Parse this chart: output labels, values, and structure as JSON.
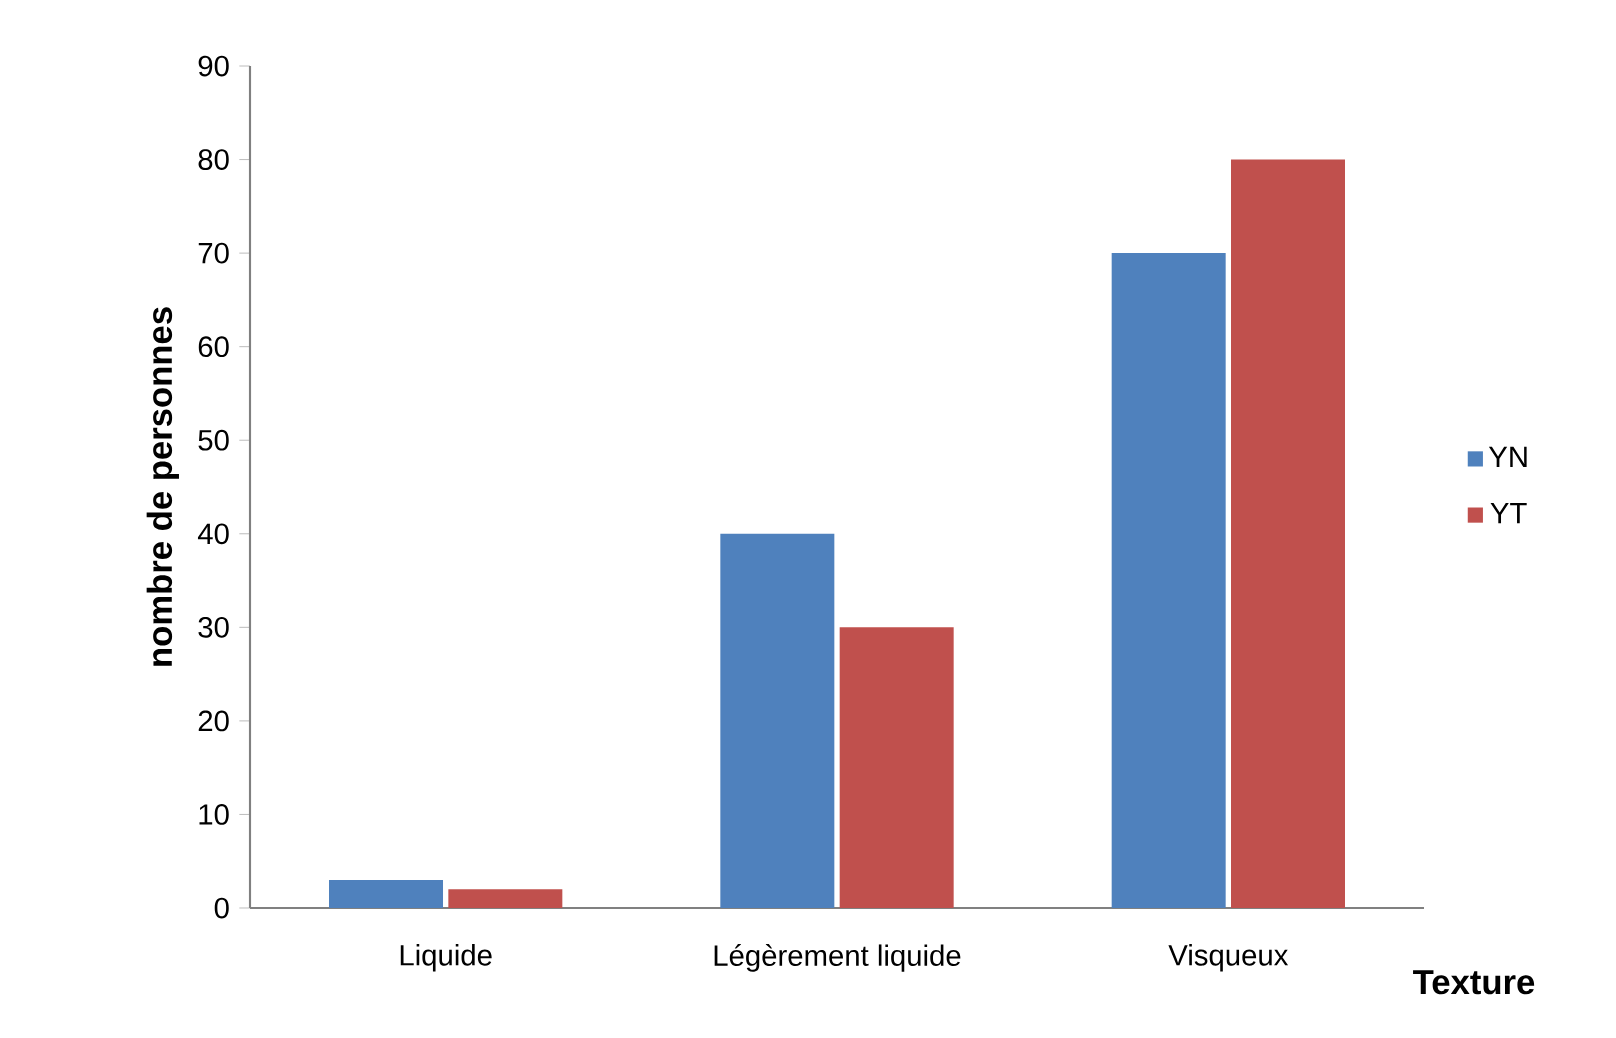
{
  "chart_data": {
    "type": "bar",
    "xlabel": "Texture",
    "ylabel": "nombre de personnes",
    "categories": [
      "Liquide",
      "Légèrement liquide",
      "Visqueux"
    ],
    "series": [
      {
        "name": "YN",
        "color": "#4f81bd",
        "values": [
          3,
          40,
          70
        ]
      },
      {
        "name": "YT",
        "color": "#c0504d",
        "values": [
          2,
          30,
          80
        ]
      }
    ],
    "ylim": [
      0,
      90
    ],
    "yticks": [
      0,
      10,
      20,
      30,
      40,
      50,
      60,
      70,
      80,
      90
    ],
    "grid": false,
    "legend": "right"
  }
}
